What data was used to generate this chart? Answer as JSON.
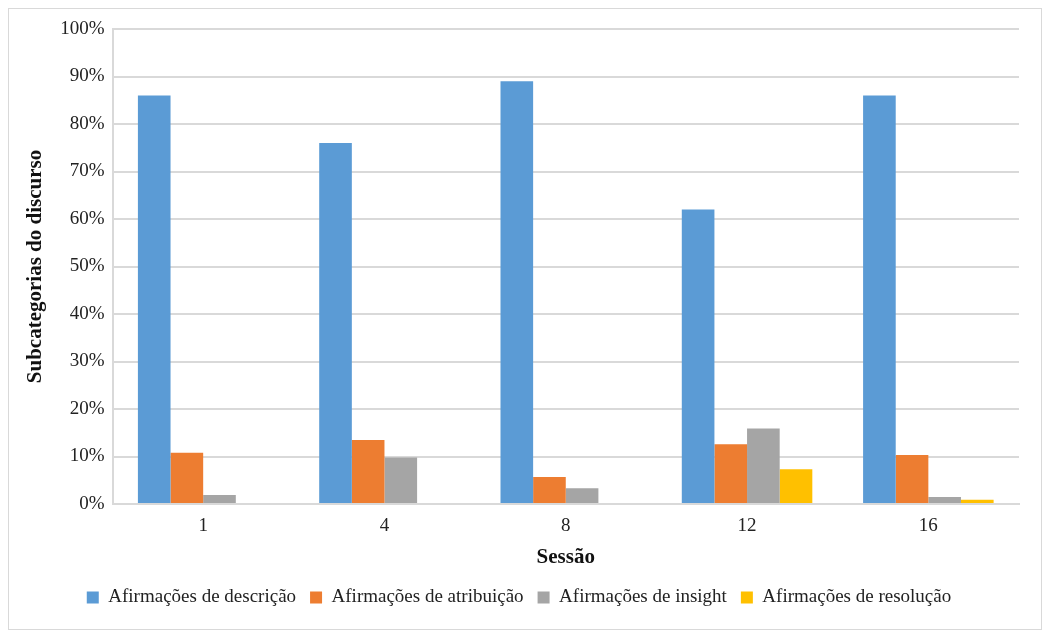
{
  "chart_data": {
    "type": "bar",
    "xlabel": "Sessão",
    "ylabel": "Subcategorias do discurso",
    "categories": [
      "1",
      "4",
      "8",
      "12",
      "16"
    ],
    "series": [
      {
        "name": "Afirmações de descrição",
        "color": "#5b9bd5",
        "values": [
          86,
          76,
          89,
          62,
          86
        ]
      },
      {
        "name": "Afirmações de atribuição",
        "color": "#ed7d31",
        "values": [
          10.8,
          13.5,
          5.7,
          12.6,
          10.3
        ]
      },
      {
        "name": "Afirmações de insight",
        "color": "#a5a5a5",
        "values": [
          1.9,
          9.8,
          3.3,
          15.9,
          1.5
        ]
      },
      {
        "name": "Afirmações de resolução",
        "color": "#ffc000",
        "values": [
          0,
          0,
          0,
          7.3,
          0.9
        ]
      }
    ],
    "ylim": [
      0,
      100
    ],
    "yticks": [
      {
        "value": 0,
        "label": "0%"
      },
      {
        "value": 10,
        "label": "10%"
      },
      {
        "value": 20,
        "label": "20%"
      },
      {
        "value": 30,
        "label": "30%"
      },
      {
        "value": 40,
        "label": "40%"
      },
      {
        "value": 50,
        "label": "50%"
      },
      {
        "value": 60,
        "label": "60%"
      },
      {
        "value": 70,
        "label": "70%"
      },
      {
        "value": 80,
        "label": "80%"
      },
      {
        "value": 90,
        "label": "90%"
      },
      {
        "value": 100,
        "label": "100%"
      }
    ],
    "grid": "y",
    "legend": "bottom"
  }
}
